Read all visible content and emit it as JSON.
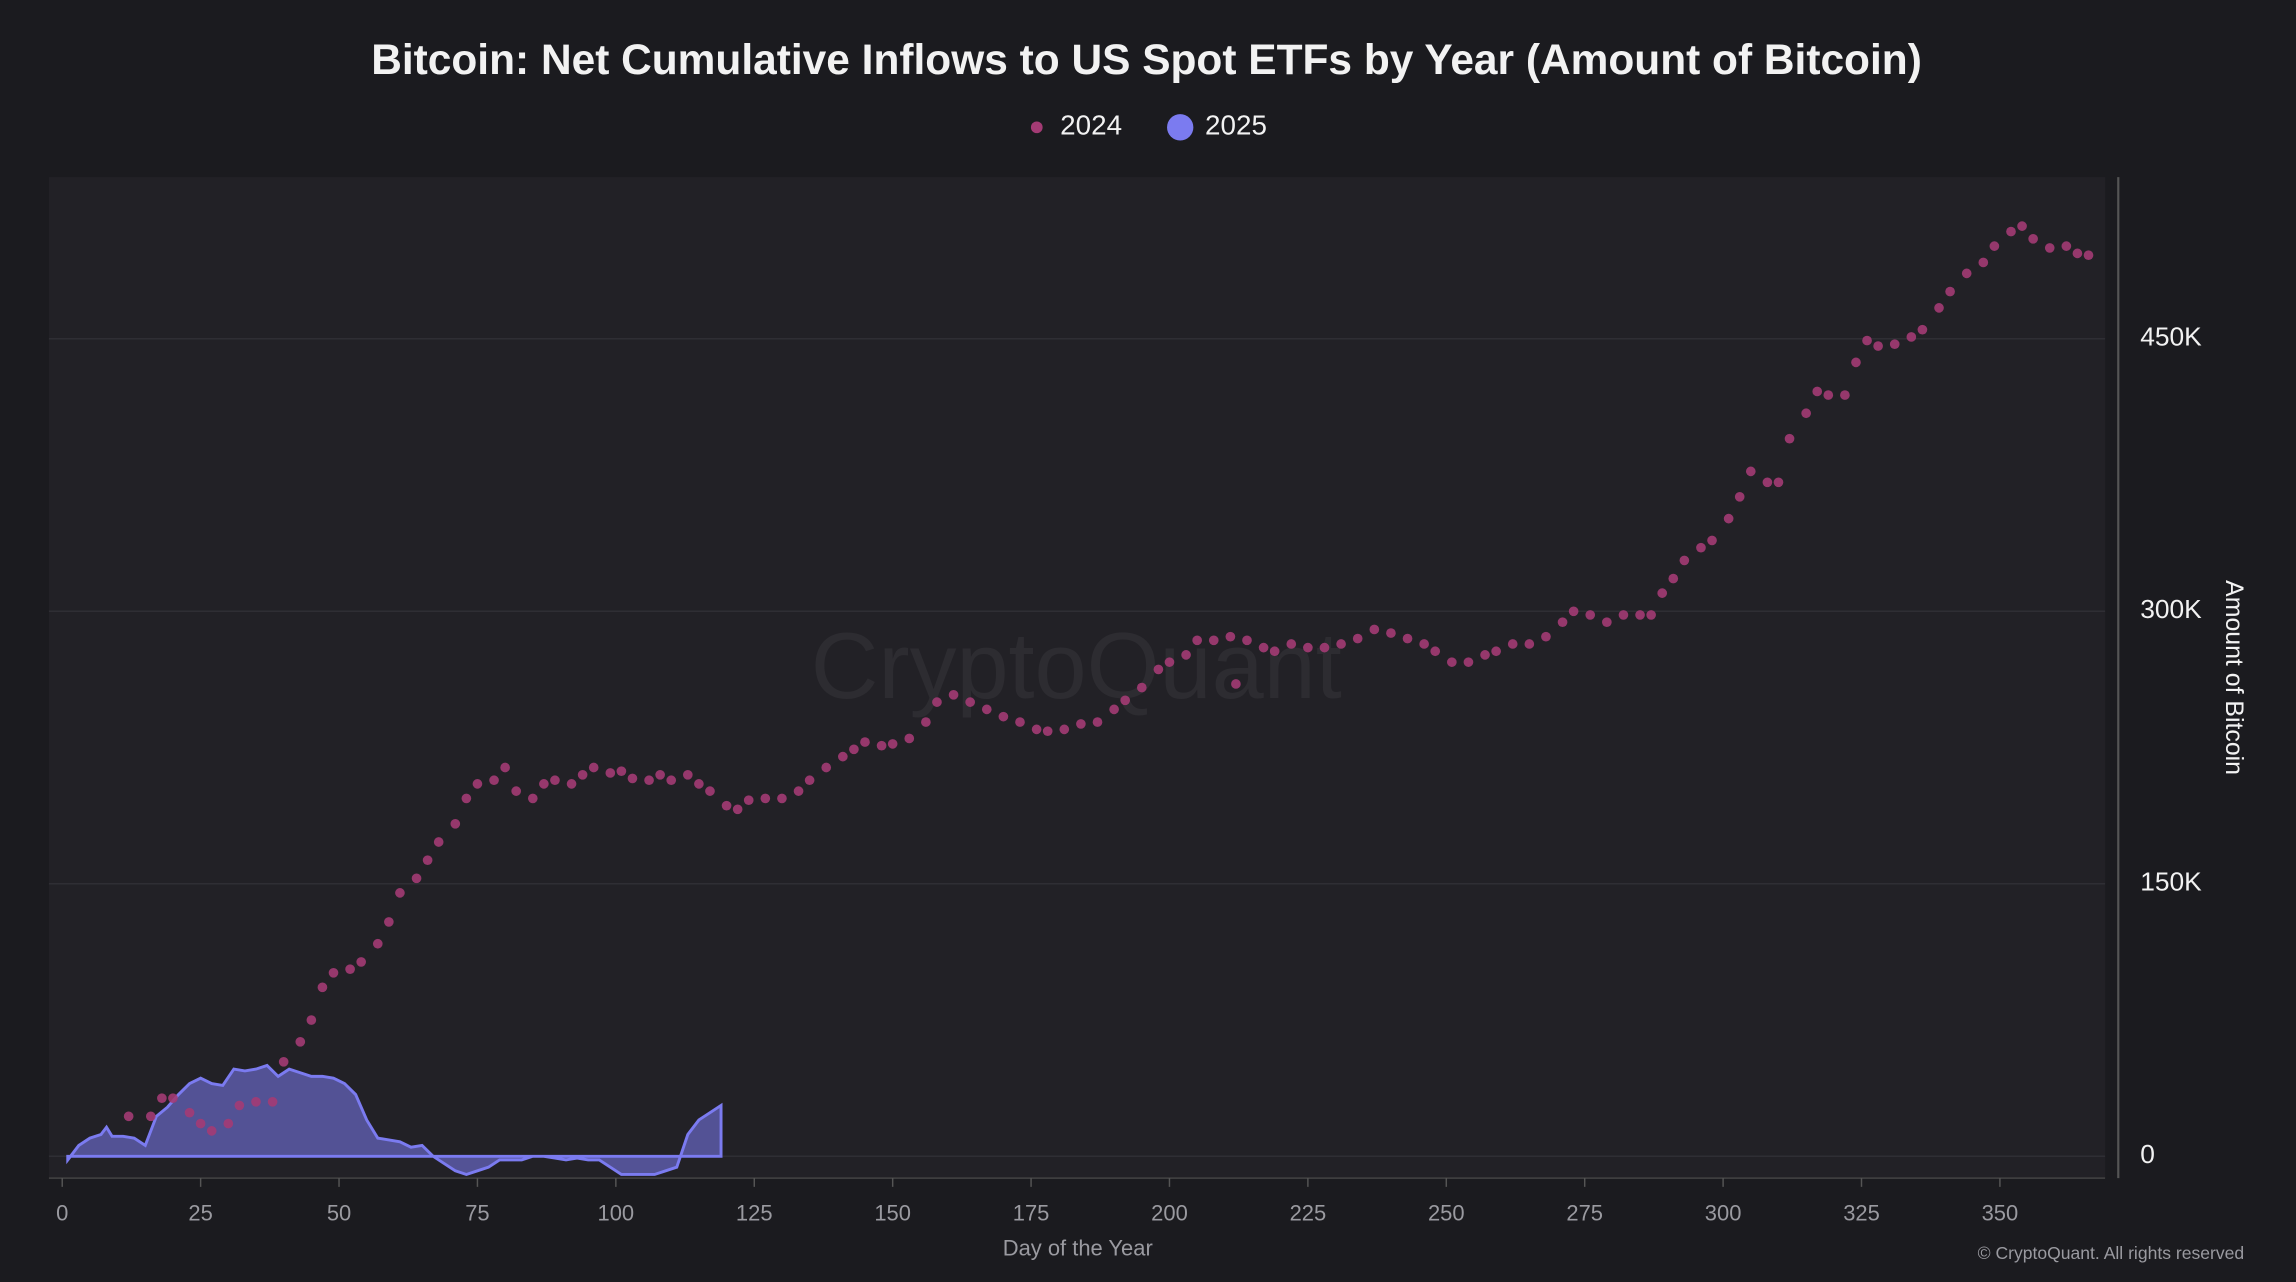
{
  "chart_data": {
    "type": "scatter",
    "title": "Bitcoin: Net Cumulative Inflows to US Spot ETFs by Year (Amount of Bitcoin)",
    "x_label": "Day of the Year",
    "y_label": "Amount of Bitcoin",
    "watermark": "CryptoQuant",
    "credit": "© CryptoQuant. All rights reserved",
    "xlim": [
      -2.4,
      369
    ],
    "ylim": [
      -12000,
      539000
    ],
    "xticks": [
      0,
      25,
      50,
      75,
      100,
      125,
      150,
      175,
      200,
      225,
      250,
      275,
      300,
      325,
      350
    ],
    "yticks": [
      0,
      {
        "value": 150000,
        "label": "150K"
      },
      {
        "value": 300000,
        "label": "300K"
      },
      {
        "value": 450000,
        "label": "450K"
      }
    ],
    "grid": true,
    "y_axis_side": "right",
    "series": [
      {
        "name": "2024",
        "type": "scatter",
        "color": "#a33b74",
        "x": [
          12,
          16,
          18,
          20,
          23,
          25,
          27,
          30,
          32,
          35,
          38,
          40,
          43,
          45,
          47,
          49,
          52,
          54,
          57,
          59,
          61,
          64,
          66,
          68,
          71,
          73,
          75,
          78,
          80,
          82,
          85,
          87,
          89,
          92,
          94,
          96,
          99,
          101,
          103,
          106,
          108,
          110,
          113,
          115,
          117,
          120,
          122,
          124,
          127,
          130,
          133,
          135,
          138,
          141,
          143,
          145,
          148,
          150,
          153,
          156,
          158,
          161,
          164,
          167,
          170,
          173,
          176,
          178,
          181,
          184,
          187,
          190,
          192,
          195,
          198,
          200,
          203,
          205,
          208,
          211,
          212,
          214,
          217,
          219,
          222,
          225,
          228,
          231,
          234,
          237,
          240,
          243,
          246,
          248,
          251,
          254,
          257,
          259,
          262,
          265,
          268,
          271,
          273,
          276,
          279,
          282,
          285,
          287,
          289,
          291,
          293,
          296,
          298,
          301,
          303,
          305,
          308,
          310,
          312,
          315,
          317,
          319,
          322,
          324,
          326,
          328,
          331,
          334,
          336,
          339,
          341,
          344,
          347,
          349,
          352,
          354,
          356,
          359,
          362,
          364,
          366
        ],
        "values": [
          22000,
          22000,
          32000,
          32000,
          24000,
          18000,
          14000,
          18000,
          28000,
          30000,
          30000,
          52000,
          63000,
          75000,
          93000,
          101000,
          103000,
          107000,
          117000,
          129000,
          145000,
          153000,
          163000,
          173000,
          183000,
          197000,
          205000,
          207000,
          214000,
          201000,
          197000,
          205000,
          207000,
          205000,
          210000,
          214000,
          211000,
          212000,
          208000,
          207000,
          210000,
          207000,
          210000,
          205000,
          201000,
          193000,
          191000,
          196000,
          197000,
          197000,
          201000,
          207000,
          214000,
          220000,
          224000,
          228000,
          226000,
          227000,
          230000,
          239000,
          250000,
          254000,
          250000,
          246000,
          242000,
          239000,
          235000,
          234000,
          235000,
          238000,
          239000,
          246000,
          251000,
          258000,
          268000,
          272000,
          276000,
          284000,
          284000,
          286000,
          260000,
          284000,
          280000,
          278000,
          282000,
          280000,
          280000,
          282000,
          285000,
          290000,
          288000,
          285000,
          282000,
          278000,
          272000,
          272000,
          276000,
          278000,
          282000,
          282000,
          286000,
          294000,
          300000,
          298000,
          294000,
          298000,
          298000,
          298000,
          310000,
          318000,
          328000,
          335000,
          339000,
          351000,
          363000,
          377000,
          371000,
          371000,
          395000,
          409000,
          421000,
          419000,
          419000,
          437000,
          449000,
          446000,
          447000,
          451000,
          455000,
          467000,
          476000,
          486000,
          492000,
          501000,
          509000,
          512000,
          505000,
          500000,
          501000,
          497000,
          496000
        ]
      },
      {
        "name": "2025",
        "type": "area",
        "color": "#7b7bf0",
        "x": [
          1,
          3,
          5,
          7,
          8,
          9,
          11,
          13,
          15,
          17,
          19,
          21,
          23,
          25,
          27,
          29,
          31,
          33,
          35,
          37,
          39,
          41,
          43,
          45,
          47,
          49,
          51,
          53,
          55,
          57,
          59,
          61,
          63,
          65,
          67,
          69,
          71,
          73,
          75,
          77,
          79,
          81,
          83,
          85,
          87,
          89,
          91,
          93,
          95,
          97,
          99,
          101,
          103,
          105,
          107,
          109,
          111,
          113,
          115,
          117,
          119
        ],
        "values": [
          -2000,
          6000,
          10000,
          12000,
          16000,
          11000,
          11000,
          10000,
          6000,
          22000,
          27000,
          34000,
          40000,
          43000,
          40000,
          39000,
          48000,
          47000,
          48000,
          50000,
          44000,
          48000,
          46000,
          44000,
          44000,
          43000,
          40000,
          34000,
          20000,
          10000,
          9000,
          8000,
          5000,
          6000,
          0,
          -4000,
          -8000,
          -10000,
          -8000,
          -6000,
          -2000,
          -2000,
          -2000,
          0,
          0,
          -1000,
          -2000,
          -1000,
          -2000,
          -2000,
          -6000,
          -10000,
          -10000,
          -10000,
          -10000,
          -8000,
          -6000,
          12000,
          20000,
          24000,
          28000
        ]
      }
    ]
  }
}
